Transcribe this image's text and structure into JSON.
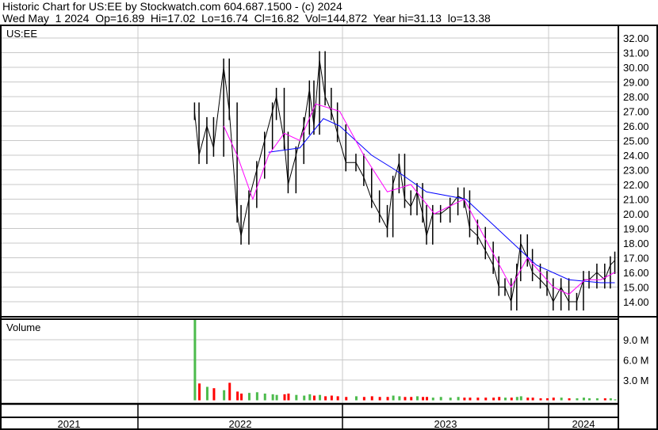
{
  "header": {
    "title": "Historic Chart for US:EE by Stockwatch.com 604.687.1500 - (c) 2024",
    "quote": "Wed May  1 2024  Op=16.89  Hi=17.02  Lo=16.74  Cl=16.82  Vol=144,872  Year hi=31.13  lo=13.38"
  },
  "price_pane_label": "US:EE",
  "volume_pane_label": "Volume",
  "chart_data": {
    "type": "line",
    "symbol": "US:EE",
    "price_axis": {
      "ylim": [
        13.3,
        32.8
      ],
      "ticks": [
        "32.00",
        "31.00",
        "30.00",
        "29.00",
        "28.00",
        "27.00",
        "26.00",
        "25.00",
        "24.00",
        "23.00",
        "22.00",
        "21.00",
        "20.00",
        "19.00",
        "18.00",
        "17.00",
        "16.00",
        "15.00",
        "14.00"
      ]
    },
    "volume_axis": {
      "ylim": [
        0,
        12.5
      ],
      "unit": "M",
      "ticks": [
        "9.0 M",
        "6.0 M",
        "3.0 M"
      ]
    },
    "x_axis": {
      "range": [
        "2021-01-01",
        "2024-05-20"
      ],
      "year_labels": [
        "2021",
        "2022",
        "2023",
        "2024"
      ]
    },
    "grid": true,
    "colors": {
      "price": "#000000",
      "ma_short": "#ff00ff",
      "ma_long": "#0000ff",
      "volume_up": "#4cbb4c",
      "volume_down": "#ff0000",
      "grid": "#c8c8c8"
    },
    "price": {
      "dates": [
        "2022-04-12",
        "2022-04-20",
        "2022-05-04",
        "2022-05-16",
        "2022-06-03",
        "2022-06-13",
        "2022-06-27",
        "2022-07-04",
        "2022-07-18",
        "2022-08-01",
        "2022-08-15",
        "2022-08-29",
        "2022-09-05",
        "2022-09-19",
        "2022-09-26",
        "2022-10-10",
        "2022-10-24",
        "2022-11-03",
        "2022-11-11",
        "2022-11-21",
        "2022-12-01",
        "2022-12-12",
        "2022-12-23",
        "2023-01-07",
        "2023-01-25",
        "2023-02-08",
        "2023-02-22",
        "2023-03-08",
        "2023-03-22",
        "2023-04-01",
        "2023-04-12",
        "2023-04-22",
        "2023-05-03",
        "2023-05-14",
        "2023-05-24",
        "2023-05-31",
        "2023-06-11",
        "2023-06-25",
        "2023-07-12",
        "2023-07-26",
        "2023-08-06",
        "2023-08-16",
        "2023-08-30",
        "2023-09-13",
        "2023-09-27",
        "2023-10-07",
        "2023-10-18",
        "2023-10-29",
        "2023-11-08",
        "2023-11-15",
        "2023-11-27",
        "2023-12-06",
        "2023-12-20",
        "2024-01-01",
        "2024-01-12",
        "2024-01-26",
        "2024-02-09",
        "2024-02-23",
        "2024-03-06",
        "2024-03-16",
        "2024-03-30",
        "2024-04-13",
        "2024-04-23",
        "2024-05-01"
      ],
      "close": [
        27,
        24,
        26,
        24.5,
        30,
        27,
        20,
        18.5,
        21,
        23,
        25,
        27,
        28,
        25,
        22,
        24,
        26,
        28.5,
        26,
        30.5,
        28,
        27,
        25.5,
        23.5,
        23.5,
        22.5,
        21,
        20,
        19,
        22,
        23.5,
        21,
        20.5,
        21.5,
        20,
        18.5,
        20,
        20,
        20.5,
        21.2,
        21,
        19,
        18.5,
        17.5,
        16.5,
        15,
        15,
        14,
        16,
        18,
        17,
        16,
        15.5,
        15,
        14,
        15,
        14,
        14,
        15.5,
        15.5,
        16,
        15.5,
        16.5,
        16.82
      ],
      "volume_m": [
        12.1,
        2.5,
        2.0,
        1.8,
        1.5,
        2.6,
        1.3,
        1.0,
        1.1,
        1.2,
        1.0,
        0.9,
        0.8,
        0.9,
        1.0,
        0.8,
        0.7,
        0.9,
        0.7,
        0.8,
        0.6,
        0.7,
        0.6,
        0.5,
        0.6,
        0.5,
        0.6,
        0.5,
        0.5,
        0.7,
        0.6,
        0.5,
        0.5,
        0.6,
        0.5,
        0.5,
        0.4,
        0.5,
        0.4,
        0.5,
        0.4,
        0.4,
        0.4,
        0.4,
        0.4,
        0.5,
        0.4,
        0.4,
        0.5,
        0.6,
        0.4,
        0.4,
        0.3,
        0.3,
        0.4,
        0.4,
        0.3,
        0.3,
        0.4,
        0.3,
        0.3,
        0.3,
        0.3,
        0.14
      ]
    },
    "ma_short": {
      "dates": [
        "2022-06-03",
        "2022-06-27",
        "2022-07-25",
        "2022-08-22",
        "2022-09-19",
        "2022-10-17",
        "2022-11-14",
        "2022-12-27",
        "2023-02-08",
        "2023-03-22",
        "2023-05-03",
        "2023-06-14",
        "2023-08-06",
        "2023-09-17",
        "2023-10-29",
        "2023-11-27",
        "2024-01-12",
        "2024-02-09",
        "2024-03-09",
        "2024-04-06",
        "2024-05-01"
      ],
      "values": [
        26,
        24,
        21,
        24,
        25.5,
        25,
        27.5,
        27,
        24,
        21.5,
        22,
        20,
        21,
        18,
        15,
        17,
        15,
        14.5,
        15.5,
        15.5,
        16
      ]
    },
    "ma_long": {
      "dates": [
        "2022-08-22",
        "2022-10-17",
        "2022-11-28",
        "2022-12-27",
        "2023-02-22",
        "2023-04-05",
        "2023-05-31",
        "2023-08-09",
        "2023-10-18",
        "2023-12-13",
        "2024-02-09",
        "2024-04-06",
        "2024-05-01"
      ],
      "values": [
        24.2,
        24.5,
        26.5,
        26,
        24,
        23,
        21.5,
        21,
        18.5,
        16.5,
        15.5,
        15.3,
        15.3
      ]
    }
  }
}
